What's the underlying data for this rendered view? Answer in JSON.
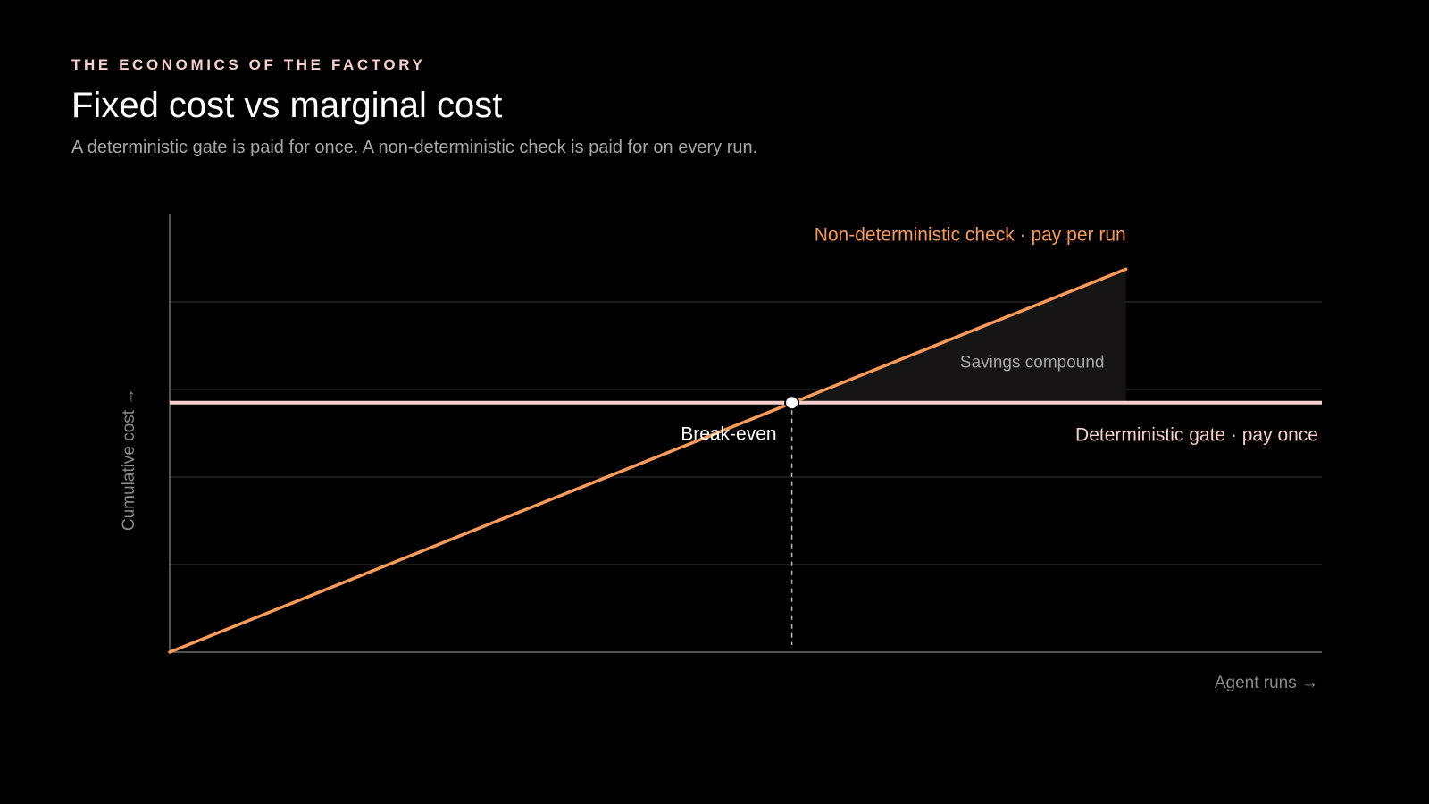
{
  "header": {
    "eyebrow": "THE ECONOMICS OF THE FACTORY",
    "title": "Fixed cost vs marginal cost",
    "subtitle": "A deterministic gate is paid for once. A non-deterministic check is paid for on every run."
  },
  "colors": {
    "background": "#000000",
    "variable_line": "#f79a5e",
    "fixed_line": "#f6d0cc",
    "savings_fill": "#161414",
    "gridline": "#262626",
    "axis": "#6e6e6e",
    "muted_text": "#a6a6a6",
    "axis_label_text": "#8a8a8a"
  },
  "chart_data": {
    "type": "line",
    "xlabel": "Agent runs →",
    "ylabel": "Cumulative cost →",
    "xlim": [
      0,
      100
    ],
    "ylim": [
      0,
      100
    ],
    "grid": true,
    "yticks_gridlines": [
      20,
      40,
      60,
      80
    ],
    "series": [
      {
        "name": "Non-deterministic check · pay per run",
        "x": [
          0,
          83
        ],
        "y": [
          0,
          87.5
        ]
      },
      {
        "name": "Deterministic gate · pay once",
        "x": [
          0,
          100
        ],
        "y": [
          57,
          57
        ]
      }
    ],
    "annotations": {
      "break_even": {
        "label": "Break-even",
        "x": 54,
        "y": 57
      },
      "savings": {
        "label": "Savings compound",
        "x_from": 54,
        "x_to": 83
      }
    }
  }
}
